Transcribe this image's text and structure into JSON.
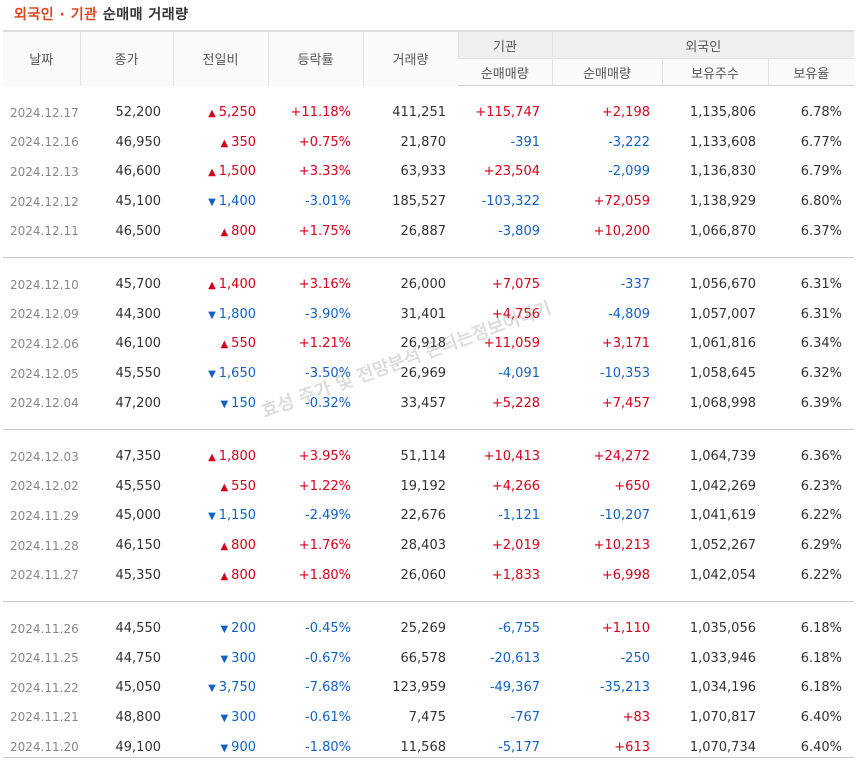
{
  "title": {
    "foreign": "외국인",
    "sep": " · ",
    "inst": "기관",
    "rest": " 순매매 거래량"
  },
  "headers": {
    "date": "날짜",
    "close": "종가",
    "change": "전일비",
    "rate": "등락률",
    "volume": "거래량",
    "institution": "기관",
    "foreign": "외국인",
    "inst_net": "순매매량",
    "foreign_net": "순매매량",
    "foreign_hold": "보유주수",
    "foreign_ratio": "보유율"
  },
  "watermark": "효성 주가 및 전망분석 돈되는정보이야기",
  "colors": {
    "up": "#d6001c",
    "down": "#1461c4"
  },
  "groups": [
    [
      {
        "date": "2024.12.17",
        "close": "52,200",
        "dir": "up",
        "change": "5,250",
        "rate": "+11.18%",
        "volume": "411,251",
        "inst": "+115,747",
        "foreign": "+2,198",
        "hold": "1,135,806",
        "ratio": "6.78%"
      },
      {
        "date": "2024.12.16",
        "close": "46,950",
        "dir": "up",
        "change": "350",
        "rate": "+0.75%",
        "volume": "21,870",
        "inst": "-391",
        "foreign": "-3,222",
        "hold": "1,133,608",
        "ratio": "6.77%"
      },
      {
        "date": "2024.12.13",
        "close": "46,600",
        "dir": "up",
        "change": "1,500",
        "rate": "+3.33%",
        "volume": "63,933",
        "inst": "+23,504",
        "foreign": "-2,099",
        "hold": "1,136,830",
        "ratio": "6.79%"
      },
      {
        "date": "2024.12.12",
        "close": "45,100",
        "dir": "down",
        "change": "1,400",
        "rate": "-3.01%",
        "volume": "185,527",
        "inst": "-103,322",
        "foreign": "+72,059",
        "hold": "1,138,929",
        "ratio": "6.80%"
      },
      {
        "date": "2024.12.11",
        "close": "46,500",
        "dir": "up",
        "change": "800",
        "rate": "+1.75%",
        "volume": "26,887",
        "inst": "-3,809",
        "foreign": "+10,200",
        "hold": "1,066,870",
        "ratio": "6.37%"
      }
    ],
    [
      {
        "date": "2024.12.10",
        "close": "45,700",
        "dir": "up",
        "change": "1,400",
        "rate": "+3.16%",
        "volume": "26,000",
        "inst": "+7,075",
        "foreign": "-337",
        "hold": "1,056,670",
        "ratio": "6.31%"
      },
      {
        "date": "2024.12.09",
        "close": "44,300",
        "dir": "down",
        "change": "1,800",
        "rate": "-3.90%",
        "volume": "31,401",
        "inst": "+4,756",
        "foreign": "-4,809",
        "hold": "1,057,007",
        "ratio": "6.31%"
      },
      {
        "date": "2024.12.06",
        "close": "46,100",
        "dir": "up",
        "change": "550",
        "rate": "+1.21%",
        "volume": "26,918",
        "inst": "+11,059",
        "foreign": "+3,171",
        "hold": "1,061,816",
        "ratio": "6.34%"
      },
      {
        "date": "2024.12.05",
        "close": "45,550",
        "dir": "down",
        "change": "1,650",
        "rate": "-3.50%",
        "volume": "26,969",
        "inst": "-4,091",
        "foreign": "-10,353",
        "hold": "1,058,645",
        "ratio": "6.32%"
      },
      {
        "date": "2024.12.04",
        "close": "47,200",
        "dir": "down",
        "change": "150",
        "rate": "-0.32%",
        "volume": "33,457",
        "inst": "+5,228",
        "foreign": "+7,457",
        "hold": "1,068,998",
        "ratio": "6.39%"
      }
    ],
    [
      {
        "date": "2024.12.03",
        "close": "47,350",
        "dir": "up",
        "change": "1,800",
        "rate": "+3.95%",
        "volume": "51,114",
        "inst": "+10,413",
        "foreign": "+24,272",
        "hold": "1,064,739",
        "ratio": "6.36%"
      },
      {
        "date": "2024.12.02",
        "close": "45,550",
        "dir": "up",
        "change": "550",
        "rate": "+1.22%",
        "volume": "19,192",
        "inst": "+4,266",
        "foreign": "+650",
        "hold": "1,042,269",
        "ratio": "6.23%"
      },
      {
        "date": "2024.11.29",
        "close": "45,000",
        "dir": "down",
        "change": "1,150",
        "rate": "-2.49%",
        "volume": "22,676",
        "inst": "-1,121",
        "foreign": "-10,207",
        "hold": "1,041,619",
        "ratio": "6.22%"
      },
      {
        "date": "2024.11.28",
        "close": "46,150",
        "dir": "up",
        "change": "800",
        "rate": "+1.76%",
        "volume": "28,403",
        "inst": "+2,019",
        "foreign": "+10,213",
        "hold": "1,052,267",
        "ratio": "6.29%"
      },
      {
        "date": "2024.11.27",
        "close": "45,350",
        "dir": "up",
        "change": "800",
        "rate": "+1.80%",
        "volume": "26,060",
        "inst": "+1,833",
        "foreign": "+6,998",
        "hold": "1,042,054",
        "ratio": "6.22%"
      }
    ],
    [
      {
        "date": "2024.11.26",
        "close": "44,550",
        "dir": "down",
        "change": "200",
        "rate": "-0.45%",
        "volume": "25,269",
        "inst": "-6,755",
        "foreign": "+1,110",
        "hold": "1,035,056",
        "ratio": "6.18%"
      },
      {
        "date": "2024.11.25",
        "close": "44,750",
        "dir": "down",
        "change": "300",
        "rate": "-0.67%",
        "volume": "66,578",
        "inst": "-20,613",
        "foreign": "-250",
        "hold": "1,033,946",
        "ratio": "6.18%"
      },
      {
        "date": "2024.11.22",
        "close": "45,050",
        "dir": "down",
        "change": "3,750",
        "rate": "-7.68%",
        "volume": "123,959",
        "inst": "-49,367",
        "foreign": "-35,213",
        "hold": "1,034,196",
        "ratio": "6.18%"
      },
      {
        "date": "2024.11.21",
        "close": "48,800",
        "dir": "down",
        "change": "300",
        "rate": "-0.61%",
        "volume": "7,475",
        "inst": "-767",
        "foreign": "+83",
        "hold": "1,070,817",
        "ratio": "6.40%"
      },
      {
        "date": "2024.11.20",
        "close": "49,100",
        "dir": "down",
        "change": "900",
        "rate": "-1.80%",
        "volume": "11,568",
        "inst": "-5,177",
        "foreign": "+613",
        "hold": "1,070,734",
        "ratio": "6.40%"
      }
    ]
  ]
}
